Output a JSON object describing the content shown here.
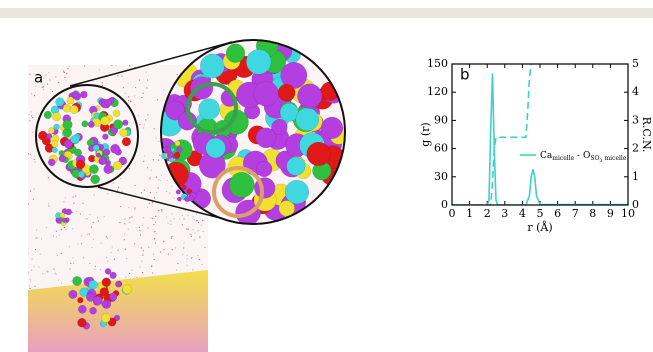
{
  "panel_a": {
    "label": "a"
  },
  "chart_data": {
    "type": "line",
    "panel_label": "b",
    "xlabel": "r (Å)",
    "ylabel": "g (r)",
    "y2label": "R.C.N.",
    "xlim": [
      0,
      10
    ],
    "xticks": [
      0,
      1,
      2,
      3,
      4,
      5,
      6,
      7,
      8,
      9,
      10
    ],
    "ylim": [
      0,
      150
    ],
    "yticks": [
      0,
      30,
      60,
      90,
      120,
      150
    ],
    "y2lim": [
      0,
      5
    ],
    "y2ticks": [
      0,
      1,
      2,
      3,
      4,
      5
    ],
    "series": [
      {
        "name_parts": [
          [
            "Ca",
            "base"
          ],
          [
            "micelle",
            "sub"
          ],
          [
            " - O",
            "base"
          ],
          [
            "SO",
            "sub"
          ],
          [
            "3",
            "subsub"
          ],
          [
            " micelle",
            "sub"
          ]
        ],
        "color": "#3fd0c9",
        "dash": false,
        "x": [
          0,
          2.0,
          2.1,
          2.2,
          2.3,
          2.4,
          2.5,
          2.6,
          4.2,
          4.4,
          4.5,
          4.6,
          4.7,
          4.8,
          5.0,
          10
        ],
        "values": [
          0,
          0,
          5,
          80,
          140,
          60,
          5,
          0,
          0,
          10,
          30,
          38,
          30,
          10,
          0.5,
          0.5
        ]
      },
      {
        "color": "#3fd0c9",
        "dash": true,
        "axis": "y2",
        "x": [
          0,
          2.2,
          2.3,
          2.4,
          2.5,
          4.2,
          4.3,
          4.4,
          4.5
        ],
        "values": [
          0,
          0,
          0.8,
          2.0,
          2.4,
          2.4,
          3.3,
          4.5,
          5
        ]
      }
    ]
  }
}
